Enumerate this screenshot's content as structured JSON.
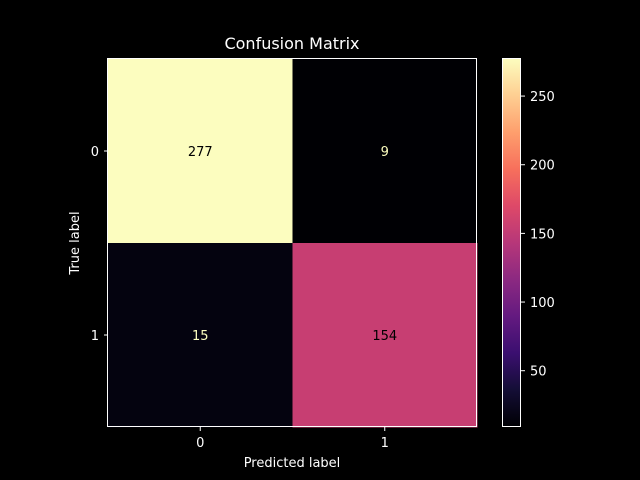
{
  "chart_data": {
    "type": "heatmap",
    "title": "Confusion Matrix",
    "xlabel": "Predicted label",
    "ylabel": "True label",
    "x_categories": [
      "0",
      "1"
    ],
    "y_categories": [
      "0",
      "1"
    ],
    "values": [
      [
        277,
        9
      ],
      [
        15,
        154
      ]
    ],
    "colormap": "magma",
    "colorbar": {
      "range": [
        9,
        277
      ],
      "ticks": [
        50,
        100,
        150,
        200,
        250
      ],
      "tick_labels": [
        "50",
        "100",
        "150",
        "200",
        "250"
      ]
    },
    "cell_text_colors": {
      "on_light": "#000000",
      "on_dark": "#fcfdbf"
    },
    "background": "#000000",
    "foreground": "#ffffff"
  }
}
